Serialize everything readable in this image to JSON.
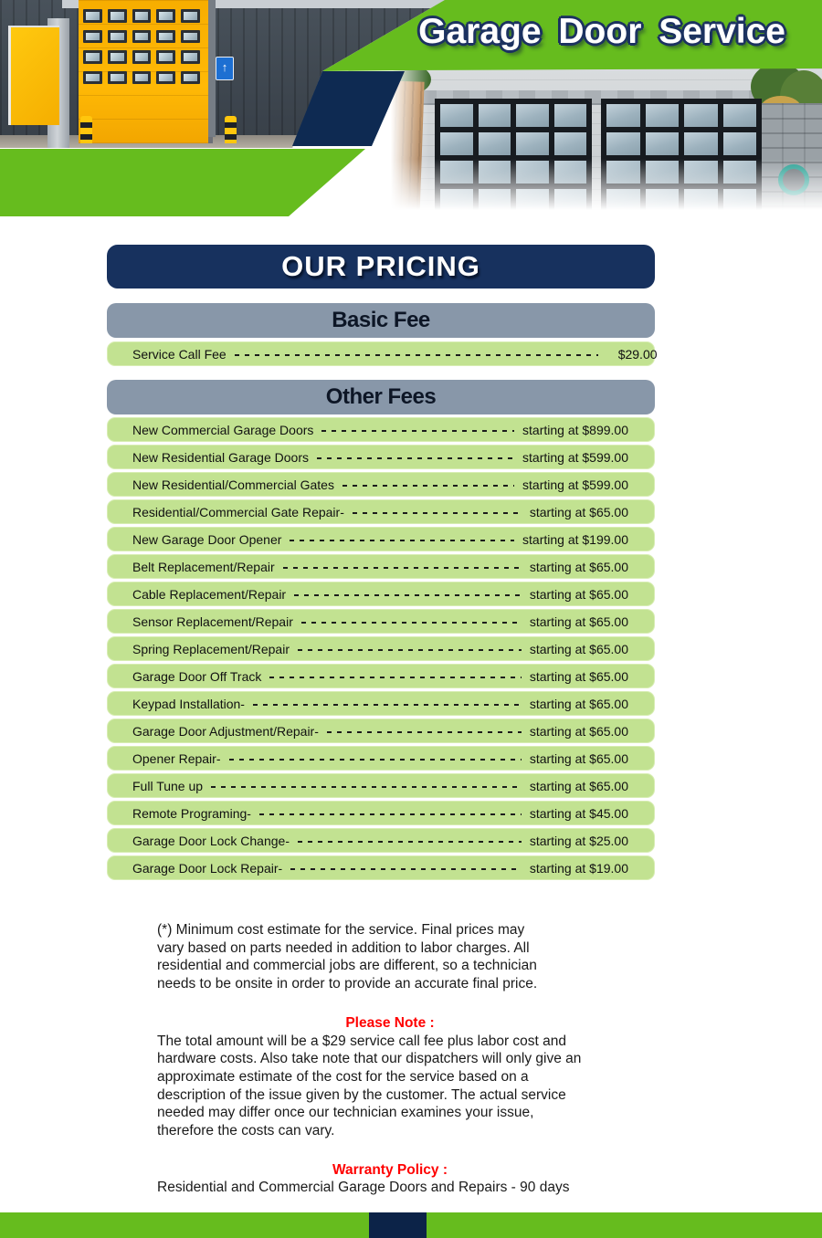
{
  "header": {
    "title": "Garage Door Service"
  },
  "pricing": {
    "title": "OUR PRICING",
    "basic": {
      "heading": "Basic Fee",
      "rows": [
        {
          "label": "Service Call Fee",
          "price": "$29.00"
        }
      ]
    },
    "other": {
      "heading": "Other Fees",
      "rows": [
        {
          "label": "New Commercial Garage Doors",
          "price": "starting at $899.00"
        },
        {
          "label": "New Residential Garage Doors",
          "price": "starting at $599.00"
        },
        {
          "label": "New Residential/Commercial Gates",
          "price": "starting at $599.00"
        },
        {
          "label": "Residential/Commercial Gate Repair-",
          "price": "starting at $65.00"
        },
        {
          "label": "New Garage Door Opener",
          "price": "starting at $199.00"
        },
        {
          "label": "Belt Replacement/Repair",
          "price": "starting at $65.00"
        },
        {
          "label": "Cable Replacement/Repair",
          "price": "starting at $65.00"
        },
        {
          "label": "Sensor Replacement/Repair",
          "price": "starting at $65.00"
        },
        {
          "label": "Spring Replacement/Repair",
          "price": "starting at $65.00"
        },
        {
          "label": "Garage Door Off Track",
          "price": "starting at $65.00"
        },
        {
          "label": "Keypad Installation-",
          "price": "starting at $65.00"
        },
        {
          "label": "Garage Door Adjustment/Repair-",
          "price": "starting at $65.00"
        },
        {
          "label": "Opener Repair-",
          "price": "starting at $65.00"
        },
        {
          "label": "Full Tune up",
          "price": "starting at $65.00"
        },
        {
          "label": "Remote Programing-",
          "price": "starting at $45.00"
        },
        {
          "label": "Garage Door Lock Change-",
          "price": "starting at $25.00"
        },
        {
          "label": "Garage Door Lock Repair-",
          "price": "starting at $19.00"
        }
      ]
    }
  },
  "notes": {
    "footnote": "(*) Minimum cost estimate for the service. Final prices may\nvary based on parts needed in addition to labor charges. All\nresidential and commercial jobs are different, so a technician\nneeds to be onsite in order to provide an accurate final price.",
    "please_note_heading": "Please Note :",
    "please_note_body": "The total amount will be a $29 service call fee plus labor cost and\nhardware costs. Also take note that our dispatchers will only give an\napproximate estimate of the cost for the service based on a\ndescription of the issue given by the customer. The actual service\nneeded may differ once our technician examines your issue,\ntherefore the costs can vary.",
    "warranty_heading": "Warranty Policy :",
    "warranty_body": "Residential and Commercial Garage Doors and Repairs - 90 days"
  },
  "icons": {
    "up_arrow_sign": "↑"
  },
  "colors": {
    "brand_green": "#66bc1e",
    "row_green": "#c2e291",
    "slate_banner": "#8897a9",
    "navy_banner": "#17315e",
    "navy_shape": "#0e2a52",
    "footer_navy": "#0c2348",
    "heading_red": "#ff0000",
    "body_text": "#1a1a1a"
  }
}
